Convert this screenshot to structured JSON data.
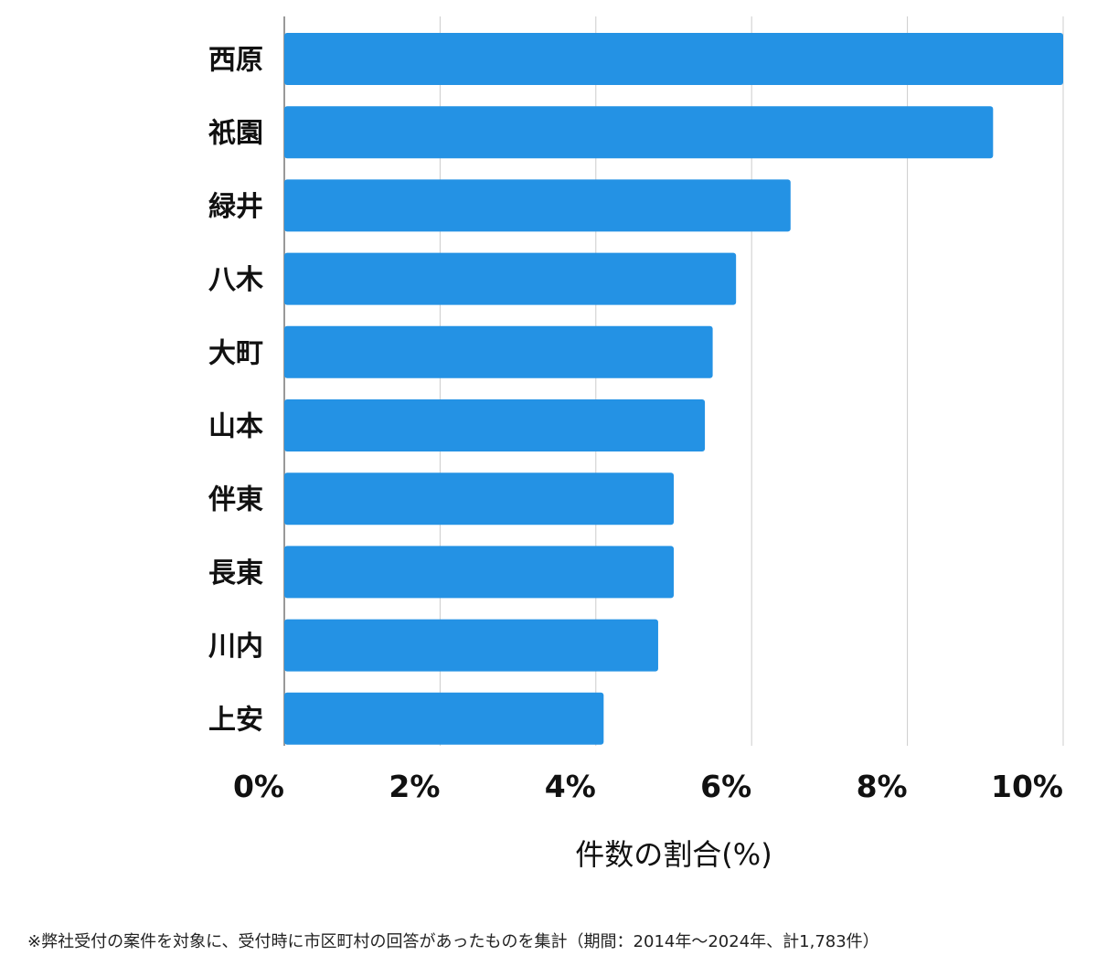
{
  "chart_data": {
    "type": "bar",
    "orientation": "horizontal",
    "categories": [
      "西原",
      "祇園",
      "緑井",
      "八木",
      "大町",
      "山本",
      "伴東",
      "長東",
      "川内",
      "上安"
    ],
    "values": [
      10.0,
      9.1,
      6.5,
      5.8,
      5.5,
      5.4,
      5.0,
      5.0,
      4.8,
      4.1
    ],
    "xlim": [
      0,
      10
    ],
    "xticks": [
      0,
      2,
      4,
      6,
      8,
      10
    ],
    "xtick_labels": [
      "0%",
      "2%",
      "4%",
      "6%",
      "8%",
      "10%"
    ],
    "xlabel": "件数の割合(%)",
    "ylabel": "",
    "title": "",
    "grid": true,
    "bar_color": "#2492E4",
    "grid_color": "#cccccc"
  },
  "footnote": "※弊社受付の案件を対象に、受付時に市区町村の回答があったものを集計（期間：2014年～2024年、計1,783件）"
}
